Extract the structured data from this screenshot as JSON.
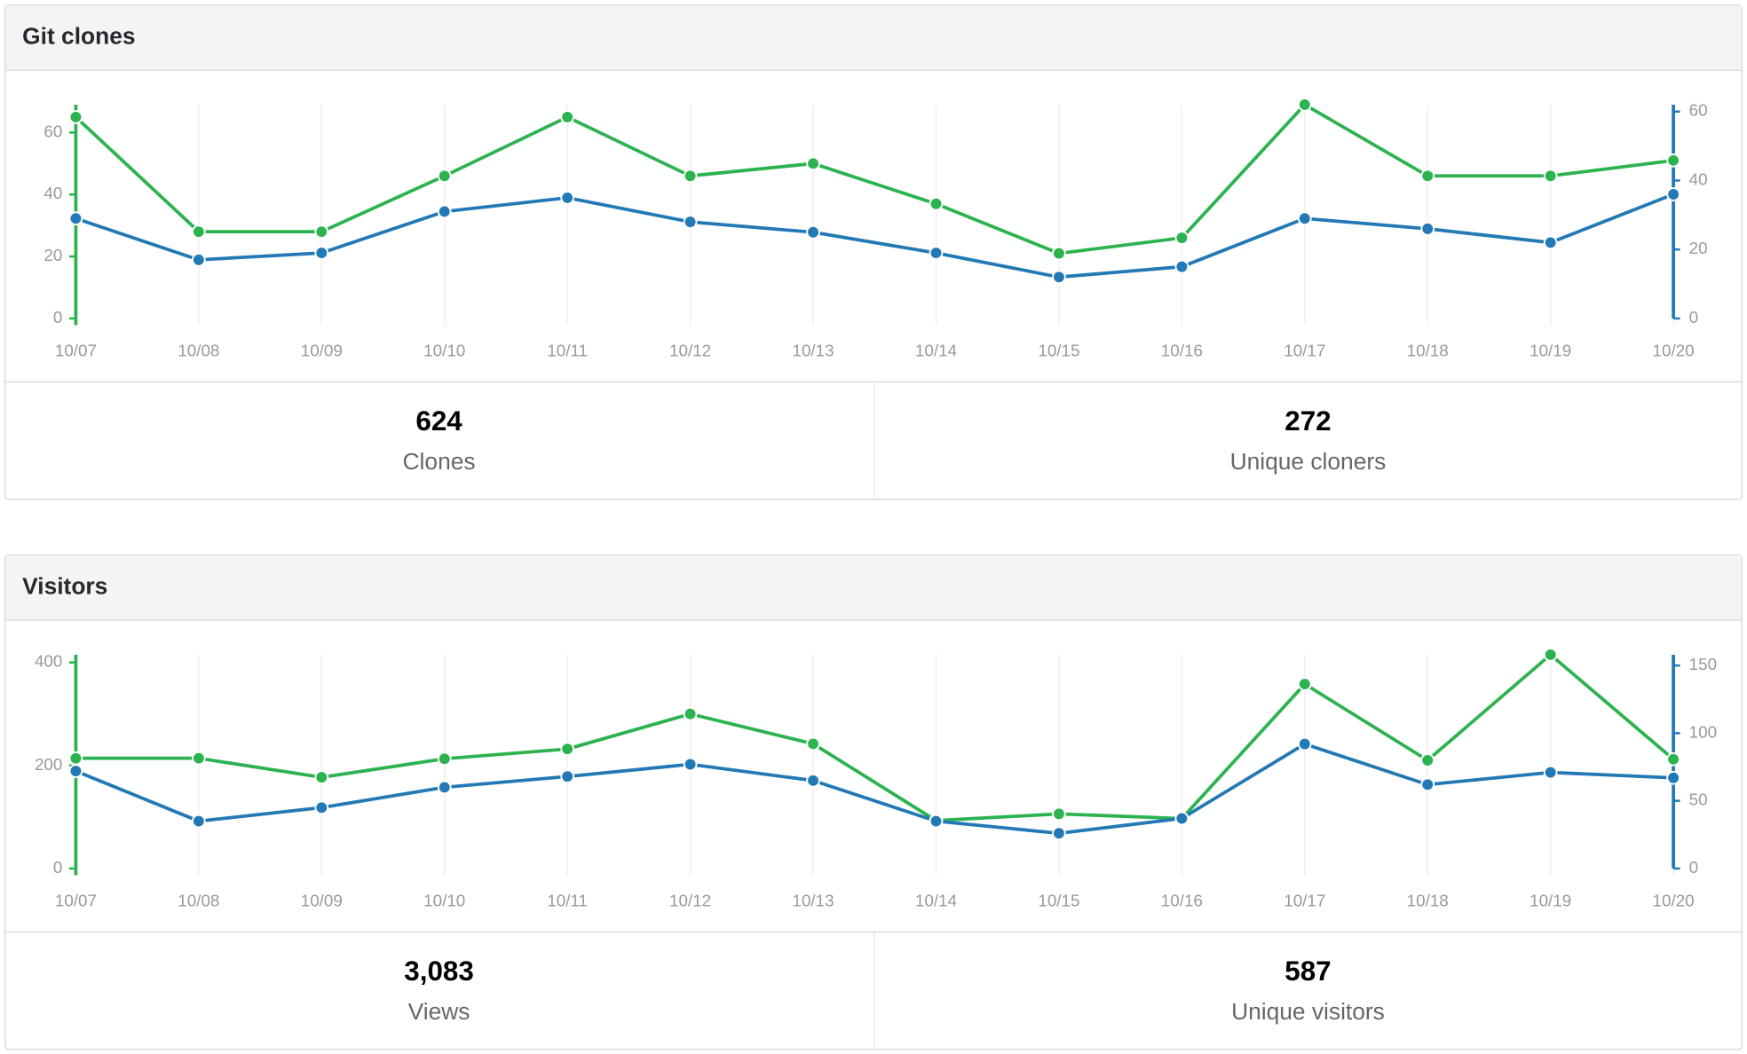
{
  "chart_data": [
    {
      "type": "line",
      "title": "Git clones",
      "categories": [
        "10/07",
        "10/08",
        "10/09",
        "10/10",
        "10/11",
        "10/12",
        "10/13",
        "10/14",
        "10/15",
        "10/16",
        "10/17",
        "10/18",
        "10/19",
        "10/20"
      ],
      "series": [
        {
          "color": "#2cb34f",
          "axis": "y",
          "values": [
            65,
            28,
            28,
            46,
            65,
            46,
            50,
            37,
            21,
            26,
            69,
            46,
            46,
            51
          ]
        },
        {
          "color": "#2279b5",
          "axis": "y2",
          "values": [
            29,
            17,
            19,
            31,
            35,
            28,
            25,
            19,
            12,
            15,
            29,
            26,
            22,
            36
          ]
        }
      ],
      "ylim": [
        0,
        69
      ],
      "yticks": [
        0,
        20,
        40,
        60
      ],
      "y2lim": [
        0,
        62
      ],
      "y2ticks": [
        0,
        20,
        40,
        60
      ],
      "grid": true,
      "summary": [
        {
          "value": "624",
          "label": "Clones"
        },
        {
          "value": "272",
          "label": "Unique cloners"
        }
      ]
    },
    {
      "type": "line",
      "title": "Visitors",
      "categories": [
        "10/07",
        "10/08",
        "10/09",
        "10/10",
        "10/11",
        "10/12",
        "10/13",
        "10/14",
        "10/15",
        "10/16",
        "10/17",
        "10/18",
        "10/19",
        "10/20"
      ],
      "series": [
        {
          "color": "#2cb34f",
          "axis": "y",
          "values": [
            214,
            214,
            177,
            213,
            232,
            300,
            242,
            93,
            106,
            97,
            358,
            210,
            415,
            212
          ]
        },
        {
          "color": "#2279b5",
          "axis": "y2",
          "values": [
            72,
            35,
            45,
            60,
            68,
            77,
            65,
            35,
            26,
            37,
            92,
            62,
            71,
            67
          ]
        }
      ],
      "ylim": [
        0,
        415
      ],
      "yticks": [
        0,
        200,
        400
      ],
      "y2lim": [
        0,
        158
      ],
      "y2ticks": [
        0,
        50,
        100,
        150
      ],
      "grid": true,
      "summary": [
        {
          "value": "3,083",
          "label": "Views"
        },
        {
          "value": "587",
          "label": "Unique visitors"
        }
      ]
    }
  ]
}
